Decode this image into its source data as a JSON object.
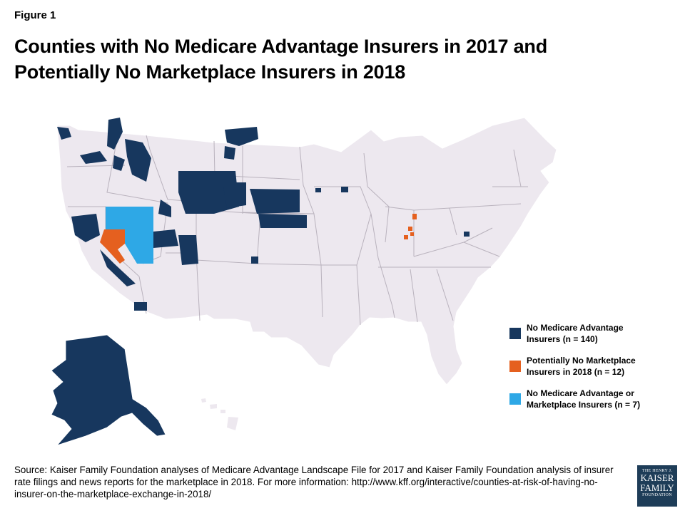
{
  "figure_label": "Figure 1",
  "title": "Counties with No Medicare Advantage Insurers in 2017 and Potentially No Marketplace Insurers in 2018",
  "legend": [
    {
      "line1": "No Medicare Advantage",
      "line2": "Insurers (n = 140)",
      "color": "#17375e"
    },
    {
      "line1": "Potentially No Marketplace",
      "line2": "Insurers in 2018  (n = 12)",
      "color": "#e5601f"
    },
    {
      "line1": "No Medicare Advantage or",
      "line2": "Marketplace Insurers (n = 7)",
      "color": "#2ea8e6"
    }
  ],
  "colors": {
    "land": "#ede8ef",
    "border": "#ffffff",
    "dark": "#17375e",
    "orange": "#e5601f",
    "light": "#2ea8e6"
  },
  "source": "Source: Kaiser Family Foundation analyses of Medicare Advantage Landscape File for 2017 and Kaiser Family Foundation analysis of insurer rate filings and news reports for the marketplace in 2018. For more information: http://www.kff.org/interactive/counties-at-risk-of-having-no-insurer-on-the-marketplace-exchange-in-2018/",
  "logo": {
    "line1": "THE HENRY J.",
    "line2": "KAISER",
    "line3": "FAMILY",
    "line4": "FOUNDATION"
  }
}
